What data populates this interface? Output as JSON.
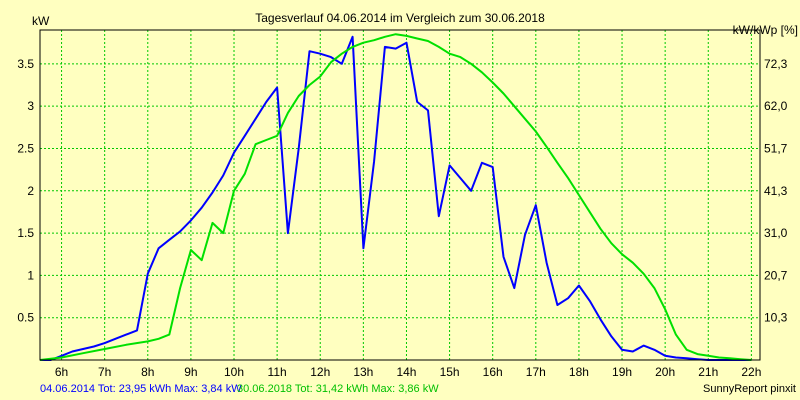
{
  "chart_data": {
    "type": "line",
    "title": "Tagesverlauf 04.06.2014 im Vergleich zum 30.06.2018",
    "ylabel_left": "kW",
    "ylabel_right": "kW/kWp [%]",
    "xlim": [
      5.5,
      22.2
    ],
    "ylim": [
      0,
      3.9
    ],
    "grid": true,
    "x_ticks": [
      {
        "value": 6,
        "label": "6h"
      },
      {
        "value": 7,
        "label": "7h"
      },
      {
        "value": 8,
        "label": "8h"
      },
      {
        "value": 9,
        "label": "9h"
      },
      {
        "value": 10,
        "label": "10h"
      },
      {
        "value": 11,
        "label": "11h"
      },
      {
        "value": 12,
        "label": "12h"
      },
      {
        "value": 13,
        "label": "13h"
      },
      {
        "value": 14,
        "label": "14h"
      },
      {
        "value": 15,
        "label": "15h"
      },
      {
        "value": 16,
        "label": "16h"
      },
      {
        "value": 17,
        "label": "17h"
      },
      {
        "value": 18,
        "label": "18h"
      },
      {
        "value": 19,
        "label": "19h"
      },
      {
        "value": 20,
        "label": "20h"
      },
      {
        "value": 21,
        "label": "21h"
      },
      {
        "value": 22,
        "label": "22h"
      }
    ],
    "y_ticks_left": [
      {
        "value": 0.5,
        "label": "0.5"
      },
      {
        "value": 1,
        "label": "1"
      },
      {
        "value": 1.5,
        "label": "1.5"
      },
      {
        "value": 2,
        "label": "2"
      },
      {
        "value": 2.5,
        "label": "2.5"
      },
      {
        "value": 3,
        "label": "3"
      },
      {
        "value": 3.5,
        "label": "3.5"
      }
    ],
    "y_ticks_right": [
      {
        "value": 0.5,
        "label": "10,3"
      },
      {
        "value": 1,
        "label": "20,7"
      },
      {
        "value": 1.5,
        "label": "31,0"
      },
      {
        "value": 2,
        "label": "41,3"
      },
      {
        "value": 2.5,
        "label": "51,7"
      },
      {
        "value": 3,
        "label": "62,0"
      },
      {
        "value": 3.5,
        "label": "72,3"
      }
    ],
    "series": [
      {
        "label": "04.06.2014 Tot: 23,95 kWh Max: 3,84 kW",
        "color": "#0000ff",
        "x": [
          5.5,
          5.75,
          6.0,
          6.25,
          6.5,
          6.75,
          7.0,
          7.25,
          7.5,
          7.75,
          8.0,
          8.25,
          8.5,
          8.75,
          9.0,
          9.25,
          9.5,
          9.75,
          10.0,
          10.25,
          10.5,
          10.75,
          11.0,
          11.25,
          11.5,
          11.75,
          12.0,
          12.25,
          12.5,
          12.75,
          13.0,
          13.25,
          13.5,
          13.75,
          14.0,
          14.25,
          14.5,
          14.75,
          15.0,
          15.25,
          15.5,
          15.75,
          16.0,
          16.25,
          16.5,
          16.75,
          17.0,
          17.25,
          17.5,
          17.75,
          18.0,
          18.25,
          18.5,
          18.75,
          19.0,
          19.25,
          19.5,
          19.75,
          20.0,
          20.25,
          20.5,
          20.75,
          21.0,
          21.25,
          21.5,
          21.75,
          22.0
        ],
        "y": [
          0.0,
          0.0,
          0.05,
          0.1,
          0.13,
          0.16,
          0.2,
          0.25,
          0.3,
          0.35,
          1.02,
          1.32,
          1.42,
          1.52,
          1.65,
          1.8,
          1.98,
          2.18,
          2.45,
          2.65,
          2.85,
          3.05,
          3.22,
          1.5,
          2.5,
          3.65,
          3.62,
          3.58,
          3.5,
          3.82,
          1.32,
          2.35,
          3.7,
          3.68,
          3.75,
          3.05,
          2.95,
          1.7,
          2.3,
          2.15,
          2.0,
          2.33,
          2.28,
          1.22,
          0.85,
          1.48,
          1.83,
          1.15,
          0.65,
          0.73,
          0.88,
          0.7,
          0.48,
          0.28,
          0.12,
          0.1,
          0.17,
          0.12,
          0.05,
          0.03,
          0.02,
          0.01,
          0.0,
          0.0,
          0.0,
          0.0,
          0.0
        ]
      },
      {
        "label": "30.06.2018 Tot: 31,42 kWh Max: 3,86 kW",
        "color": "#00e000",
        "x": [
          5.5,
          6.0,
          6.5,
          7.0,
          7.5,
          8.0,
          8.25,
          8.5,
          8.75,
          9.0,
          9.25,
          9.5,
          9.75,
          10.0,
          10.25,
          10.5,
          10.75,
          11.0,
          11.25,
          11.5,
          11.75,
          12.0,
          12.25,
          12.5,
          12.75,
          13.0,
          13.25,
          13.5,
          13.75,
          14.0,
          14.25,
          14.5,
          14.75,
          15.0,
          15.25,
          15.5,
          15.75,
          16.0,
          16.25,
          16.5,
          16.75,
          17.0,
          17.25,
          17.5,
          17.75,
          18.0,
          18.25,
          18.5,
          18.75,
          19.0,
          19.25,
          19.5,
          19.75,
          20.0,
          20.25,
          20.5,
          20.75,
          21.0,
          21.25,
          21.5,
          21.75,
          22.0
        ],
        "y": [
          0.0,
          0.03,
          0.08,
          0.13,
          0.18,
          0.22,
          0.25,
          0.3,
          0.85,
          1.3,
          1.18,
          1.62,
          1.5,
          2.0,
          2.2,
          2.55,
          2.6,
          2.65,
          2.92,
          3.12,
          3.25,
          3.35,
          3.52,
          3.62,
          3.7,
          3.75,
          3.78,
          3.82,
          3.85,
          3.83,
          3.8,
          3.77,
          3.7,
          3.62,
          3.58,
          3.5,
          3.4,
          3.28,
          3.15,
          3.0,
          2.85,
          2.7,
          2.52,
          2.33,
          2.15,
          1.95,
          1.75,
          1.55,
          1.38,
          1.25,
          1.15,
          1.02,
          0.85,
          0.6,
          0.3,
          0.12,
          0.07,
          0.05,
          0.03,
          0.02,
          0.01,
          0.0
        ]
      }
    ],
    "footer_right": "SunnyReport pinxit"
  }
}
